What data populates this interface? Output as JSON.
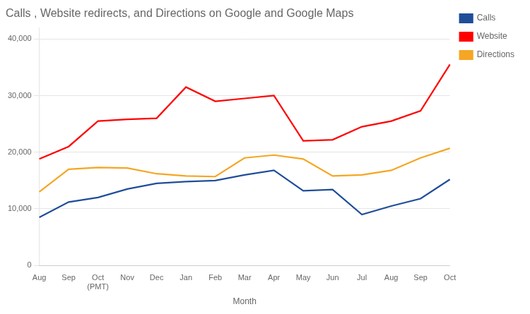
{
  "chart_data": {
    "type": "line",
    "title": "Calls , Website redirects, and Directions on Google and Google Maps",
    "xlabel": "Month",
    "categories": [
      "Aug",
      "Sep",
      "Oct\n(PMT)",
      "Nov",
      "Dec",
      "Jan",
      "Feb",
      "Mar",
      "Apr",
      "May",
      "Jun",
      "Jul",
      "Aug",
      "Sep",
      "Oct"
    ],
    "series": [
      {
        "name": "Calls",
        "color": "#1f4e99",
        "values": [
          8500,
          11200,
          12000,
          13500,
          14500,
          14800,
          15000,
          16000,
          16800,
          13200,
          13400,
          9000,
          10500,
          11800,
          15200
        ]
      },
      {
        "name": "Website",
        "color": "#ff0000",
        "values": [
          18800,
          21000,
          25500,
          25800,
          26000,
          31500,
          29000,
          29500,
          30000,
          22000,
          22200,
          24500,
          25500,
          27300,
          35500
        ]
      },
      {
        "name": "Directions",
        "color": "#f5a623",
        "values": [
          13000,
          17000,
          17300,
          17200,
          16200,
          15800,
          15700,
          19000,
          19500,
          18800,
          15800,
          16000,
          16800,
          19000,
          20700
        ]
      }
    ],
    "ylim": [
      0,
      42000
    ],
    "yticks": [
      0,
      {
        "value": 10000,
        "label": "10,000"
      },
      {
        "value": 20000,
        "label": "20,000"
      },
      {
        "value": 30000,
        "label": "30,000"
      },
      {
        "value": 40000,
        "label": "40,000"
      }
    ],
    "grid": true,
    "legend": "right"
  }
}
